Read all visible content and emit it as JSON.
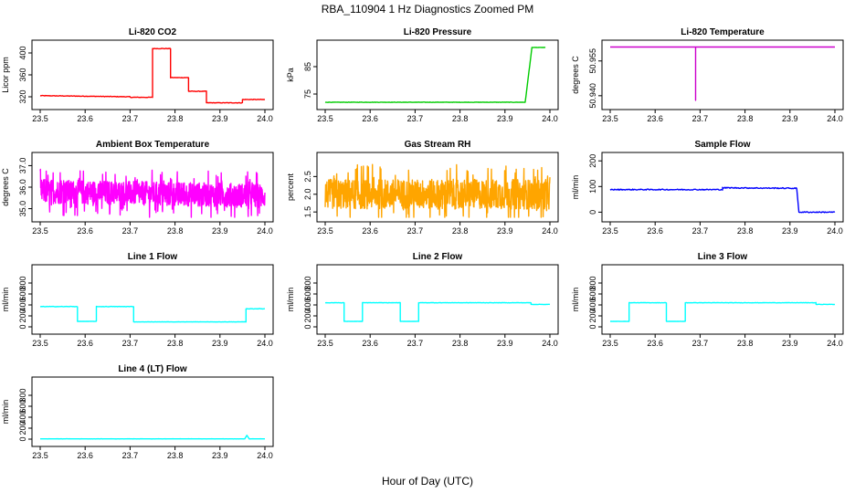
{
  "figure": {
    "title": "RBA_110904  1 Hz Diagnostics Zoomed PM",
    "xlabel": "Hour of Day (UTC)"
  },
  "chart_data": [
    {
      "type": "line",
      "title": "Li-820 CO2",
      "ylabel": "Licor ppm",
      "color": "#ff0000",
      "xlim": [
        23.5,
        24.0
      ],
      "ylim": [
        305,
        415
      ],
      "x_ticks": [
        "23.5",
        "23.6",
        "23.7",
        "23.8",
        "23.9",
        "24.0"
      ],
      "y_ticks": [
        "320",
        "360",
        "400"
      ],
      "segments": [
        {
          "x": [
            23.5,
            23.7
          ],
          "y": [
            322,
            320
          ],
          "noise": 1
        },
        {
          "x": [
            23.7,
            23.75
          ],
          "y": [
            319,
            319
          ],
          "noise": 1
        },
        {
          "x": [
            23.75,
            23.79
          ],
          "y": [
            408,
            408
          ],
          "noise": 1
        },
        {
          "x": [
            23.79,
            23.83
          ],
          "y": [
            355,
            355
          ],
          "noise": 1
        },
        {
          "x": [
            23.83,
            23.87
          ],
          "y": [
            330,
            330
          ],
          "noise": 1
        },
        {
          "x": [
            23.87,
            23.95
          ],
          "y": [
            309,
            309
          ],
          "noise": 1
        },
        {
          "x": [
            23.95,
            24.0
          ],
          "y": [
            315,
            315
          ],
          "noise": 1
        }
      ]
    },
    {
      "type": "line",
      "title": "Li-820 Pressure",
      "ylabel": "kPa",
      "color": "#00cc00",
      "xlim": [
        23.5,
        24.0
      ],
      "ylim": [
        71,
        93
      ],
      "x_ticks": [
        "23.5",
        "23.6",
        "23.7",
        "23.8",
        "23.9",
        "24.0"
      ],
      "y_ticks": [
        "75",
        "85"
      ],
      "segments": [
        {
          "x": [
            23.5,
            23.945
          ],
          "y": [
            72,
            72
          ],
          "noise": 0.15
        },
        {
          "x": [
            23.945,
            23.96
          ],
          "y": [
            72,
            92
          ],
          "noise": 0
        },
        {
          "x": [
            23.96,
            23.99
          ],
          "y": [
            92,
            92
          ],
          "noise": 0.1
        }
      ]
    },
    {
      "type": "line",
      "title": "Li-820 Temperature",
      "ylabel": "degrees C",
      "color": "#cc00cc",
      "xlim": [
        23.5,
        24.0
      ],
      "ylim": [
        50.936,
        50.962
      ],
      "x_ticks": [
        "23.5",
        "23.6",
        "23.7",
        "23.8",
        "23.9",
        "24.0"
      ],
      "y_ticks": [
        "50.940",
        "50.955"
      ],
      "segments": [
        {
          "x": [
            23.5,
            23.69
          ],
          "y": [
            50.961,
            50.961
          ],
          "noise": 0
        },
        {
          "x": [
            23.69,
            23.69
          ],
          "y": [
            50.961,
            50.938
          ],
          "noise": 0
        },
        {
          "x": [
            23.69,
            24.0
          ],
          "y": [
            50.961,
            50.961
          ],
          "noise": 0
        }
      ]
    },
    {
      "type": "line",
      "title": "Ambient Box Temperature",
      "ylabel": "degrees C",
      "color": "#ff00ff",
      "xlim": [
        23.5,
        24.0
      ],
      "ylim": [
        34.6,
        37.4
      ],
      "x_ticks": [
        "23.5",
        "23.6",
        "23.7",
        "23.8",
        "23.9",
        "24.0"
      ],
      "y_ticks": [
        "35.0",
        "36.0",
        "37.0"
      ],
      "segments": [
        {
          "x": [
            23.5,
            24.0
          ],
          "y": [
            35.8,
            35.6
          ],
          "noise": 0.8,
          "dense": true
        }
      ]
    },
    {
      "type": "line",
      "title": "Gas Stream RH",
      "ylabel": "percent",
      "color": "#ffa500",
      "xlim": [
        23.5,
        24.0
      ],
      "ylim": [
        1.35,
        3.05
      ],
      "x_ticks": [
        "23.5",
        "23.6",
        "23.7",
        "23.8",
        "23.9",
        "24.0"
      ],
      "y_ticks": [
        "1.5",
        "2.0",
        "2.5"
      ],
      "segments": [
        {
          "x": [
            23.5,
            24.0
          ],
          "y": [
            2.0,
            2.0
          ],
          "noise": 0.6,
          "dense": true
        }
      ]
    },
    {
      "type": "line",
      "title": "Sample Flow",
      "ylabel": "ml/min",
      "color": "#0000ff",
      "xlim": [
        23.5,
        24.0
      ],
      "ylim": [
        -20,
        215
      ],
      "x_ticks": [
        "23.5",
        "23.6",
        "23.7",
        "23.8",
        "23.9",
        "24.0"
      ],
      "y_ticks": [
        "0",
        "100",
        "200"
      ],
      "segments": [
        {
          "x": [
            23.5,
            23.75
          ],
          "y": [
            88,
            88
          ],
          "noise": 4
        },
        {
          "x": [
            23.75,
            23.915
          ],
          "y": [
            95,
            93
          ],
          "noise": 4
        },
        {
          "x": [
            23.915,
            23.92
          ],
          "y": [
            93,
            0
          ],
          "noise": 0
        },
        {
          "x": [
            23.92,
            24.0
          ],
          "y": [
            0,
            0
          ],
          "noise": 4
        }
      ]
    },
    {
      "type": "line",
      "title": "Line 1 Flow",
      "ylabel": "ml/min",
      "color": "#00ffff",
      "xlim": [
        23.5,
        24.0
      ],
      "ylim": [
        -50,
        1050
      ],
      "x_ticks": [
        "23.5",
        "23.6",
        "23.7",
        "23.8",
        "23.9",
        "24.0"
      ],
      "y_ticks": [
        "0",
        "200",
        "400",
        "600",
        "800"
      ],
      "segments": [
        {
          "x": [
            23.5,
            23.583
          ],
          "y": [
            370,
            370
          ],
          "noise": 8
        },
        {
          "x": [
            23.583,
            23.625
          ],
          "y": [
            100,
            100
          ],
          "noise": 4
        },
        {
          "x": [
            23.625,
            23.708
          ],
          "y": [
            370,
            370
          ],
          "noise": 8
        },
        {
          "x": [
            23.708,
            23.958
          ],
          "y": [
            90,
            90
          ],
          "noise": 4
        },
        {
          "x": [
            23.958,
            24.0
          ],
          "y": [
            330,
            330
          ],
          "noise": 8
        }
      ]
    },
    {
      "type": "line",
      "title": "Line 2 Flow",
      "ylabel": "ml/min",
      "color": "#00ffff",
      "xlim": [
        23.5,
        24.0
      ],
      "ylim": [
        -50,
        1050
      ],
      "x_ticks": [
        "23.5",
        "23.6",
        "23.7",
        "23.8",
        "23.9",
        "24.0"
      ],
      "y_ticks": [
        "0",
        "200",
        "400",
        "600",
        "800"
      ],
      "segments": [
        {
          "x": [
            23.5,
            23.542
          ],
          "y": [
            440,
            440
          ],
          "noise": 6
        },
        {
          "x": [
            23.542,
            23.583
          ],
          "y": [
            100,
            100
          ],
          "noise": 4
        },
        {
          "x": [
            23.583,
            23.667
          ],
          "y": [
            440,
            440
          ],
          "noise": 6
        },
        {
          "x": [
            23.667,
            23.708
          ],
          "y": [
            100,
            100
          ],
          "noise": 4
        },
        {
          "x": [
            23.708,
            23.958
          ],
          "y": [
            440,
            440
          ],
          "noise": 6
        },
        {
          "x": [
            23.958,
            24.0
          ],
          "y": [
            410,
            410
          ],
          "noise": 6
        }
      ]
    },
    {
      "type": "line",
      "title": "Line 3 Flow",
      "ylabel": "ml/min",
      "color": "#00ffff",
      "xlim": [
        23.5,
        24.0
      ],
      "ylim": [
        -50,
        1050
      ],
      "x_ticks": [
        "23.5",
        "23.6",
        "23.7",
        "23.8",
        "23.9",
        "24.0"
      ],
      "y_ticks": [
        "0",
        "200",
        "400",
        "600",
        "800"
      ],
      "segments": [
        {
          "x": [
            23.5,
            23.542
          ],
          "y": [
            100,
            100
          ],
          "noise": 4
        },
        {
          "x": [
            23.542,
            23.625
          ],
          "y": [
            440,
            440
          ],
          "noise": 6
        },
        {
          "x": [
            23.625,
            23.667
          ],
          "y": [
            100,
            100
          ],
          "noise": 4
        },
        {
          "x": [
            23.667,
            23.958
          ],
          "y": [
            440,
            440
          ],
          "noise": 6
        },
        {
          "x": [
            23.958,
            24.0
          ],
          "y": [
            410,
            410
          ],
          "noise": 6
        }
      ]
    },
    {
      "type": "line",
      "title": "Line 4 (LT) Flow",
      "ylabel": "ml/min",
      "color": "#00ffff",
      "xlim": [
        23.5,
        24.0
      ],
      "ylim": [
        -50,
        1050
      ],
      "x_ticks": [
        "23.5",
        "23.6",
        "23.7",
        "23.8",
        "23.9",
        "24.0"
      ],
      "y_ticks": [
        "0",
        "200",
        "400",
        "600",
        "800"
      ],
      "segments": [
        {
          "x": [
            23.5,
            23.955
          ],
          "y": [
            5,
            5
          ],
          "noise": 2
        },
        {
          "x": [
            23.955,
            23.96
          ],
          "y": [
            5,
            70
          ],
          "noise": 0
        },
        {
          "x": [
            23.96,
            23.965
          ],
          "y": [
            70,
            5
          ],
          "noise": 0
        },
        {
          "x": [
            23.965,
            24.0
          ],
          "y": [
            5,
            5
          ],
          "noise": 2
        }
      ]
    }
  ]
}
